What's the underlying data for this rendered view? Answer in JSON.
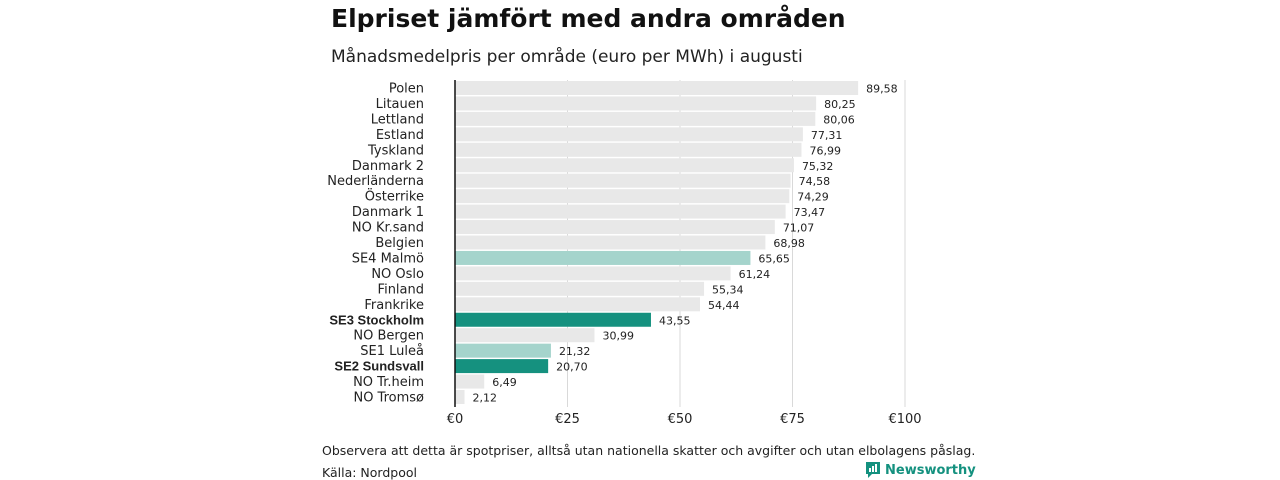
{
  "header": {
    "title": "Elpriset jämfört med andra områden",
    "subtitle": "Månadsmedelpris per område (euro per MWh) i augusti"
  },
  "footer": {
    "note": "Observera att detta är spotpriser, alltså utan nationella skatter och avgifter och utan elbolagens påslag.",
    "source": "Källa: Nordpool",
    "brand": "Newsworthy"
  },
  "colors": {
    "bar_default": "#e8e8e8",
    "bar_highlight_dark": "#15917f",
    "bar_highlight_light": "#a5d4cc",
    "grid": "#d9d9d9",
    "axis": "#111111",
    "brand": "#14917f"
  },
  "chart_data": {
    "type": "bar",
    "orientation": "horizontal",
    "categories": [
      "Polen",
      "Litauen",
      "Lettland",
      "Estland",
      "Tyskland",
      "Danmark  2",
      "Nederländerna",
      "Österrike",
      "Danmark  1",
      "NO Kr.sand",
      "Belgien",
      "SE4  Malmö",
      "NO Oslo",
      "Finland",
      "Frankrike",
      "SE3 Stockholm",
      "NO Bergen",
      "SE1  Luleå",
      "SE2 Sundsvall",
      "NO Tr.heim",
      "NO Tromsø"
    ],
    "values": [
      89.58,
      80.25,
      80.06,
      77.31,
      76.99,
      75.32,
      74.58,
      74.29,
      73.47,
      71.07,
      68.98,
      65.65,
      61.24,
      55.34,
      54.44,
      43.55,
      30.99,
      21.32,
      20.7,
      6.49,
      2.12
    ],
    "value_labels": [
      "89,58",
      "80,25",
      "80,06",
      "77,31",
      "76,99",
      "75,32",
      "74,58",
      "74,29",
      "73,47",
      "71,07",
      "68,98",
      "65,65",
      "61,24",
      "55,34",
      "54,44",
      "43,55",
      "30,99",
      "21,32",
      "20,70",
      "6,49",
      "2,12"
    ],
    "highlight": [
      "none",
      "none",
      "none",
      "none",
      "none",
      "none",
      "none",
      "none",
      "none",
      "none",
      "none",
      "light",
      "none",
      "none",
      "none",
      "dark",
      "none",
      "light",
      "dark",
      "none",
      "none"
    ],
    "bold_labels": [
      false,
      false,
      false,
      false,
      false,
      false,
      false,
      false,
      false,
      false,
      false,
      false,
      false,
      false,
      false,
      true,
      false,
      false,
      true,
      false,
      false
    ],
    "xlim": [
      0,
      100
    ],
    "xticks": [
      0,
      25,
      50,
      75,
      100
    ],
    "xtick_labels": [
      "€0",
      "€25",
      "€50",
      "€75",
      "€100"
    ],
    "grid": true
  }
}
